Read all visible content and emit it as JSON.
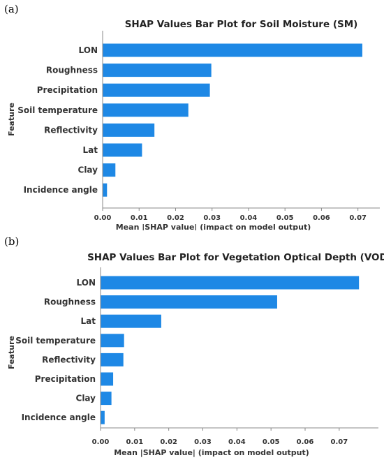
{
  "panels": [
    {
      "label": "(a)"
    },
    {
      "label": "(b)"
    }
  ],
  "colors": {
    "bar": "#1e88e5",
    "axis": "#888888",
    "text": "#333333"
  },
  "chart_data": [
    {
      "type": "bar",
      "orientation": "horizontal",
      "title": "SHAP Values Bar Plot for Soil Moisture (SM)",
      "xlabel": "Mean |SHAP value| (impact on model output)",
      "ylabel": "Feature",
      "categories": [
        "LON",
        "Roughness",
        "Precipitation",
        "Soil temperature",
        "Reflectivity",
        "Lat",
        "Clay",
        "Incidence angle"
      ],
      "values": [
        0.0712,
        0.0298,
        0.0294,
        0.0235,
        0.0142,
        0.0108,
        0.0035,
        0.0012
      ],
      "xlim": [
        0,
        0.076
      ],
      "xticks": [
        0.0,
        0.01,
        0.02,
        0.03,
        0.04,
        0.05,
        0.06,
        0.07
      ],
      "xtick_labels": [
        "0.00",
        "0.01",
        "0.02",
        "0.03",
        "0.04",
        "0.05",
        "0.06",
        "0.07"
      ],
      "grid": false
    },
    {
      "type": "bar",
      "orientation": "horizontal",
      "title": "SHAP Values Bar Plot for Vegetation Optical Depth (VOD)",
      "xlabel": "Mean |SHAP value| (impact on model output)",
      "ylabel": "Feature",
      "categories": [
        "LON",
        "Roughness",
        "Lat",
        "Soil temperature",
        "Reflectivity",
        "Precipitation",
        "Clay",
        "Incidence angle"
      ],
      "values": [
        0.0758,
        0.0518,
        0.0178,
        0.0069,
        0.0067,
        0.0037,
        0.0032,
        0.0012
      ],
      "xlim": [
        0,
        0.0815
      ],
      "xticks": [
        0.0,
        0.01,
        0.02,
        0.03,
        0.04,
        0.05,
        0.06,
        0.07
      ],
      "xtick_labels": [
        "0.00",
        "0.01",
        "0.02",
        "0.03",
        "0.04",
        "0.05",
        "0.06",
        "0.07"
      ],
      "grid": false
    }
  ]
}
